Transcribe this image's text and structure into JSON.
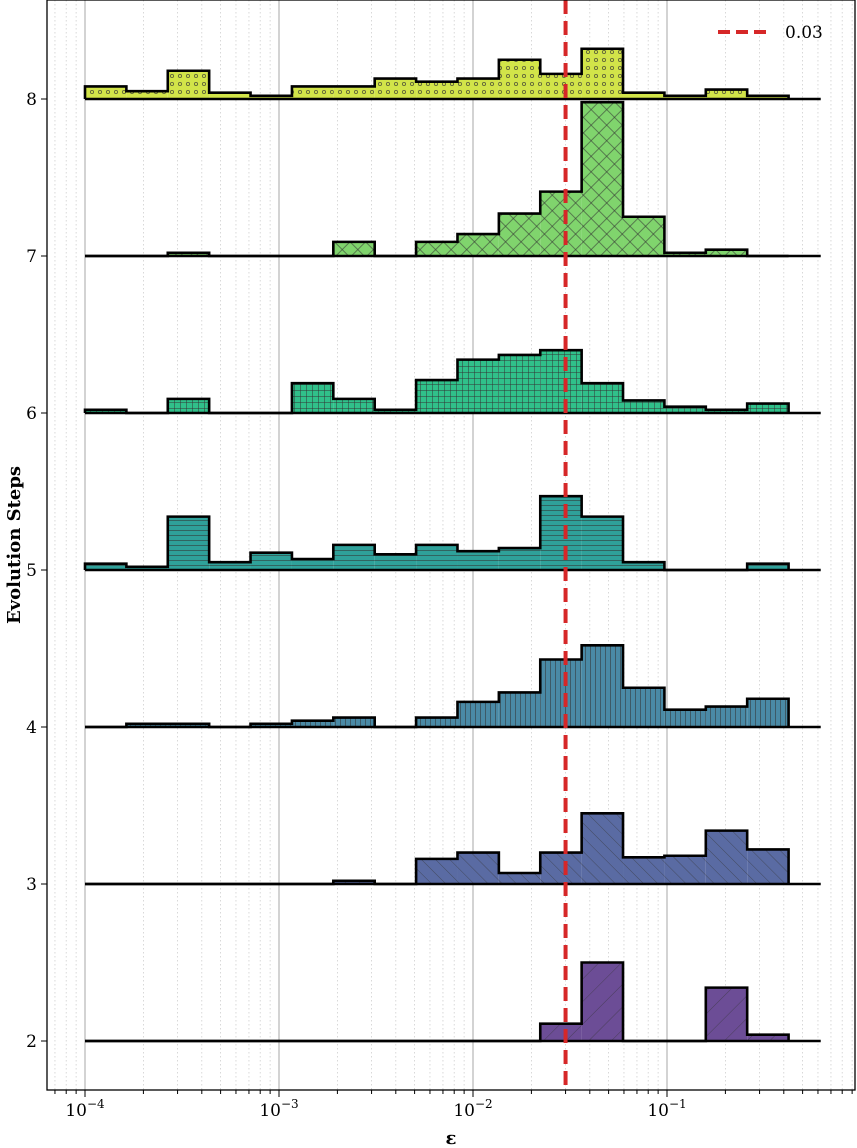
{
  "chart_data": {
    "type": "ridgeline-histogram",
    "title": "",
    "xlabel": "ε",
    "ylabel": "Evolution Steps",
    "xscale": "log",
    "xlim": [
      6e-05,
      0.7
    ],
    "ylim": [
      1.7,
      8.5
    ],
    "x_ticks": [
      {
        "base": "10",
        "exp": "−4",
        "value": 0.0001
      },
      {
        "base": "10",
        "exp": "−3",
        "value": 0.001
      },
      {
        "base": "10",
        "exp": "−2",
        "value": 0.01
      },
      {
        "base": "10",
        "exp": "−1",
        "value": 0.1
      }
    ],
    "y_ticks": [
      "2",
      "3",
      "4",
      "5",
      "6",
      "7",
      "8"
    ],
    "bin_edges_log10": [
      -4.0,
      -3.7867,
      -3.5733,
      -3.36,
      -3.1467,
      -2.9333,
      -2.72,
      -2.5067,
      -2.2933,
      -2.08,
      -1.8667,
      -1.6533,
      -1.44,
      -1.2267,
      -1.0133,
      -0.8,
      -0.5867,
      -0.3733
    ],
    "line_end_x": 0.62,
    "threshold": {
      "value": 0.03,
      "label": "0.03",
      "color": "#d62728",
      "legend_position": "top-right"
    },
    "series": [
      {
        "step": 2,
        "color": "#6c4d96",
        "hatch": "diag-fwd-sparse",
        "values": [
          0,
          0,
          0,
          0,
          0,
          0,
          0,
          0,
          0,
          0,
          0,
          0.11,
          0.5,
          0,
          0,
          0.34,
          0.04
        ]
      },
      {
        "step": 3,
        "color": "#5a6ba3",
        "hatch": "diag-back",
        "values": [
          0,
          0,
          0,
          0,
          0,
          0,
          0.02,
          0,
          0.16,
          0.2,
          0.07,
          0.2,
          0.45,
          0.17,
          0.18,
          0.34,
          0.22
        ]
      },
      {
        "step": 4,
        "color": "#4a8aa6",
        "hatch": "vertical",
        "values": [
          0,
          0.02,
          0.02,
          0,
          0.02,
          0.04,
          0.06,
          0,
          0.06,
          0.16,
          0.22,
          0.43,
          0.52,
          0.25,
          0.11,
          0.13,
          0.18
        ]
      },
      {
        "step": 5,
        "color": "#2fa19a",
        "hatch": "horizontal",
        "values": [
          0.04,
          0.02,
          0.34,
          0.05,
          0.11,
          0.07,
          0.16,
          0.1,
          0.16,
          0.12,
          0.14,
          0.47,
          0.34,
          0.05,
          0,
          0,
          0.04
        ]
      },
      {
        "step": 6,
        "color": "#30c08a",
        "hatch": "grid",
        "values": [
          0.02,
          0,
          0.09,
          0,
          0,
          0.19,
          0.09,
          0.02,
          0.21,
          0.34,
          0.37,
          0.4,
          0.19,
          0.08,
          0.04,
          0.02,
          0.06
        ]
      },
      {
        "step": 7,
        "color": "#80d46d",
        "hatch": "crosshatch",
        "values": [
          0,
          0,
          0.02,
          0,
          0,
          0,
          0.09,
          0,
          0.09,
          0.14,
          0.27,
          0.41,
          0.98,
          0.25,
          0.02,
          0.04,
          0
        ]
      },
      {
        "step": 8,
        "color": "#d2e449",
        "hatch": "dots",
        "values": [
          0.08,
          0.05,
          0.18,
          0.04,
          0.02,
          0.08,
          0.08,
          0.13,
          0.11,
          0.13,
          0.25,
          0.16,
          0.32,
          0.04,
          0.02,
          0.06,
          0.02
        ]
      }
    ]
  }
}
